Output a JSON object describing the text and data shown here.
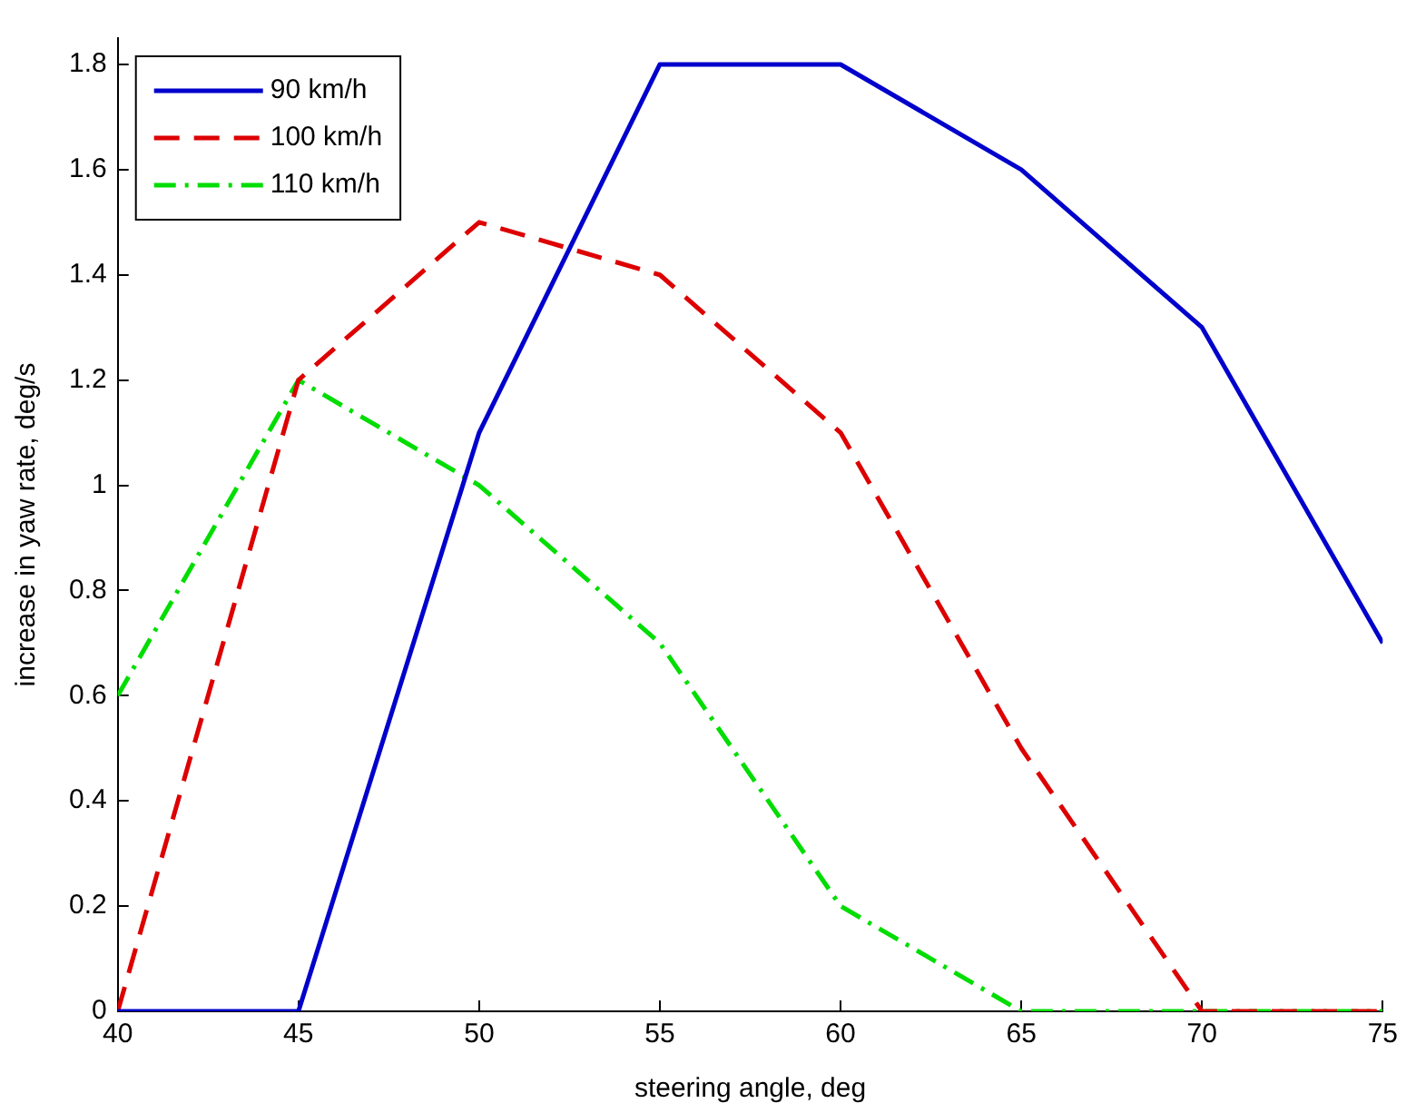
{
  "chart_data": {
    "type": "line",
    "xlabel": "steering angle, deg",
    "ylabel": "increase in yaw rate, deg/s",
    "x": [
      40,
      45,
      50,
      55,
      60,
      65,
      70,
      75
    ],
    "series": [
      {
        "name": "90 km/h",
        "color": "#0000cc",
        "line_style": "solid",
        "values": [
          0,
          0,
          1.1,
          1.8,
          1.8,
          1.6,
          1.3,
          0.7
        ]
      },
      {
        "name": "100 km/h",
        "color": "#dd0000",
        "line_style": "dashed",
        "values": [
          0,
          1.2,
          1.5,
          1.4,
          1.1,
          0.5,
          0,
          0
        ]
      },
      {
        "name": "110 km/h",
        "color": "#00dd00",
        "line_style": "dashdot",
        "values": [
          0.6,
          1.2,
          1.0,
          0.7,
          0.2,
          0,
          0,
          0
        ]
      }
    ],
    "xlim": [
      40,
      75
    ],
    "xticks": [
      40,
      45,
      50,
      55,
      60,
      65,
      70,
      75
    ],
    "ylim": [
      0,
      1.85
    ],
    "yticks": [
      0,
      0.2,
      0.4,
      0.6,
      0.8,
      1,
      1.2,
      1.4,
      1.6,
      1.8
    ],
    "grid": false,
    "legend": "top left",
    "marker": "none"
  }
}
